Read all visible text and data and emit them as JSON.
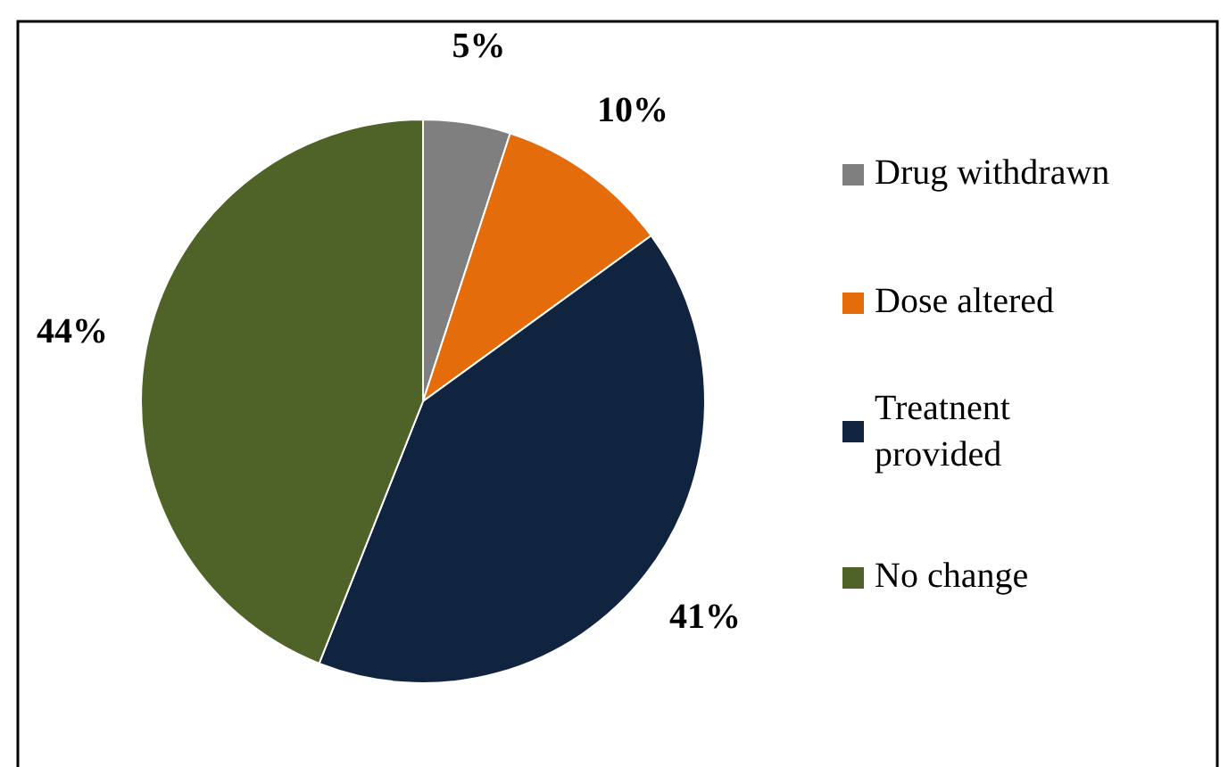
{
  "chart_data": {
    "type": "pie",
    "categories": [
      "Drug withdrawn",
      "Dose altered",
      "Treatnent provided",
      "No change"
    ],
    "values": [
      5,
      10,
      41,
      44
    ],
    "colors": [
      "#7f7f7f",
      "#e46c0a",
      "#10243f",
      "#4f6228"
    ],
    "value_labels": [
      "5%",
      "10%",
      "41%",
      "44%"
    ],
    "legend": "right"
  }
}
